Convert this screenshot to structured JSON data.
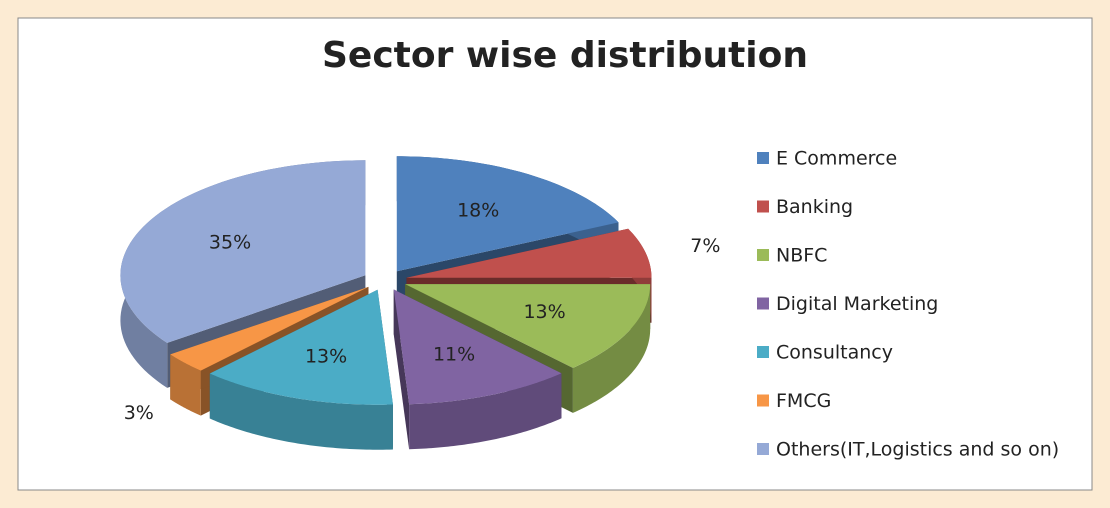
{
  "chart_data": {
    "type": "pie",
    "title": "Sector wise distribution",
    "categories": [
      "E Commerce",
      "Banking",
      "NBFC",
      "Digital Marketing",
      "Consultancy",
      "FMCG",
      "Others(IT,Logistics and so on)"
    ],
    "values": [
      18,
      7,
      13,
      11,
      13,
      3,
      35
    ],
    "value_labels": [
      "18%",
      "7%",
      "13%",
      "11%",
      "13%",
      "3%",
      "35%"
    ],
    "colors": [
      "#4f81bd",
      "#c0504d",
      "#9bbb59",
      "#8064a2",
      "#4bacc6",
      "#f79646",
      "#95a9d6"
    ],
    "legend": "right"
  }
}
